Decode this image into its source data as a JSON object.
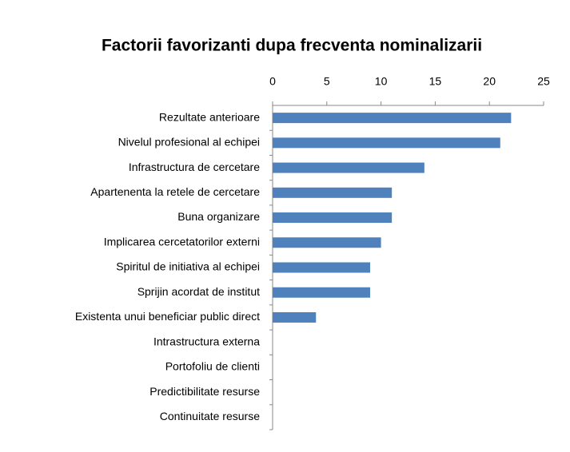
{
  "chart_data": {
    "type": "barh",
    "title": "Factorii favorizanti  dupa frecventa nominalizarii",
    "categories": [
      "Rezultate anterioare",
      "Nivelul profesional al echipei",
      "Infrastructura de cercetare",
      "Apartenenta la retele de cercetare",
      "Buna organizare",
      "Implicarea cercetatorilor externi",
      "Spiritul de initiativa al echipei",
      "Sprijin acordat de institut",
      "Existenta unui beneficiar public direct",
      "Intrastructura externa",
      "Portofoliu de clienti",
      "Predictibilitate resurse",
      "Continuitate resurse"
    ],
    "values": [
      22,
      21,
      14,
      11,
      11,
      10,
      9,
      9,
      4,
      0,
      0,
      0,
      0
    ],
    "color": "#4f81bd",
    "xlim": [
      0,
      25
    ],
    "xticks": [
      0,
      5,
      10,
      15,
      20,
      25
    ]
  }
}
